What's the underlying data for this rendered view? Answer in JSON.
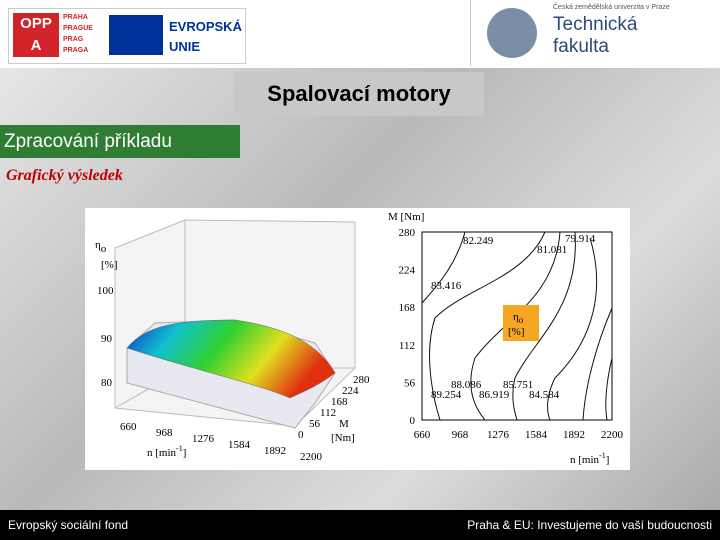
{
  "header": {
    "left_logo": {
      "lines": [
        "OPP",
        "A"
      ],
      "city": [
        "PRAHA",
        "PRAGUE",
        "PRAG",
        "PRAGA"
      ],
      "eu": [
        "EVROPSKÁ",
        "UNIE"
      ]
    },
    "right_logo": {
      "university": "Česká zemědělská univerzita v Praze",
      "faculty": [
        "Technická",
        "fakulta"
      ]
    }
  },
  "title": "Spalovací motory",
  "section": "Zpracování příkladu",
  "subtitle": "Grafický výsledek",
  "surface_plot": {
    "z_symbol": "η",
    "z_sub": "o",
    "z_unit": "[%]",
    "z_ticks": [
      "100",
      "90",
      "80"
    ],
    "x_ticks": [
      "660",
      "968",
      "1276",
      "1584",
      "1892",
      "2200"
    ],
    "y_ticks": [
      "0",
      "56",
      "112",
      "168",
      "224",
      "280"
    ],
    "x_label": "n [min",
    "x_label_sup": "-1",
    "x_label_end": "]",
    "y_label": "M",
    "y_label_unit": "[Nm]"
  },
  "contour_plot": {
    "y_label": "M [Nm]",
    "y_ticks": [
      "280",
      "224",
      "168",
      "112",
      "56",
      "0"
    ],
    "x_ticks": [
      "660",
      "968",
      "1276",
      "1584",
      "1892",
      "2200"
    ],
    "x_label": "n [min",
    "x_label_sup": "-1",
    "x_label_end": "]",
    "legend_symbol": "η",
    "legend_sub": "o",
    "legend_unit": "[%]",
    "contour_labels": [
      "82.249",
      "81.081",
      "79.914",
      "83.416",
      "88.086",
      "85.751",
      "89.254",
      "86.919",
      "84.584"
    ]
  },
  "footer": {
    "left": "Evropský sociální fond",
    "right": "Praha & EU: Investujeme do vaší budoucnosti"
  }
}
